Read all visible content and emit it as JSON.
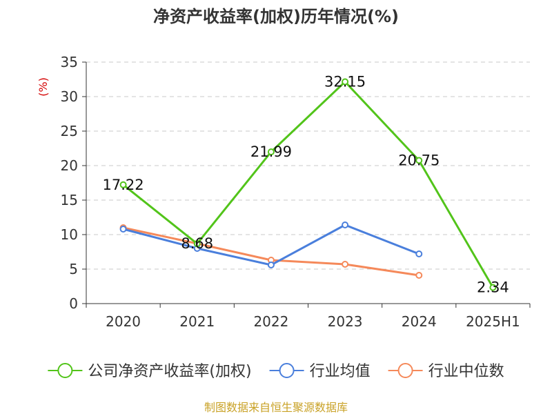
{
  "chart_data": {
    "type": "line",
    "title": "净资产收益率(加权)历年情况(%)",
    "ylabel": "(%)",
    "xlabel": "",
    "categories": [
      "2020",
      "2021",
      "2022",
      "2023",
      "2024",
      "2025H1"
    ],
    "ylim": [
      0,
      35
    ],
    "yticks": [
      0,
      5,
      10,
      15,
      20,
      25,
      30,
      35
    ],
    "grid": true,
    "legend_position": "bottom",
    "series": [
      {
        "name": "公司净资产收益率(加权)",
        "color": "#52c41a",
        "values": [
          17.22,
          8.68,
          21.99,
          32.15,
          20.75,
          2.34
        ],
        "labels": [
          "17.22",
          "8.68",
          "21.99",
          "32.15",
          "20.75",
          "2.34"
        ]
      },
      {
        "name": "行业均值",
        "color": "#4a7fdc",
        "values": [
          10.8,
          8.0,
          5.6,
          11.4,
          7.2,
          null
        ]
      },
      {
        "name": "行业中位数",
        "color": "#f5895a",
        "values": [
          11.0,
          8.7,
          6.3,
          5.7,
          4.1,
          null
        ]
      }
    ]
  },
  "source": "制图数据来自恒生聚源数据库"
}
